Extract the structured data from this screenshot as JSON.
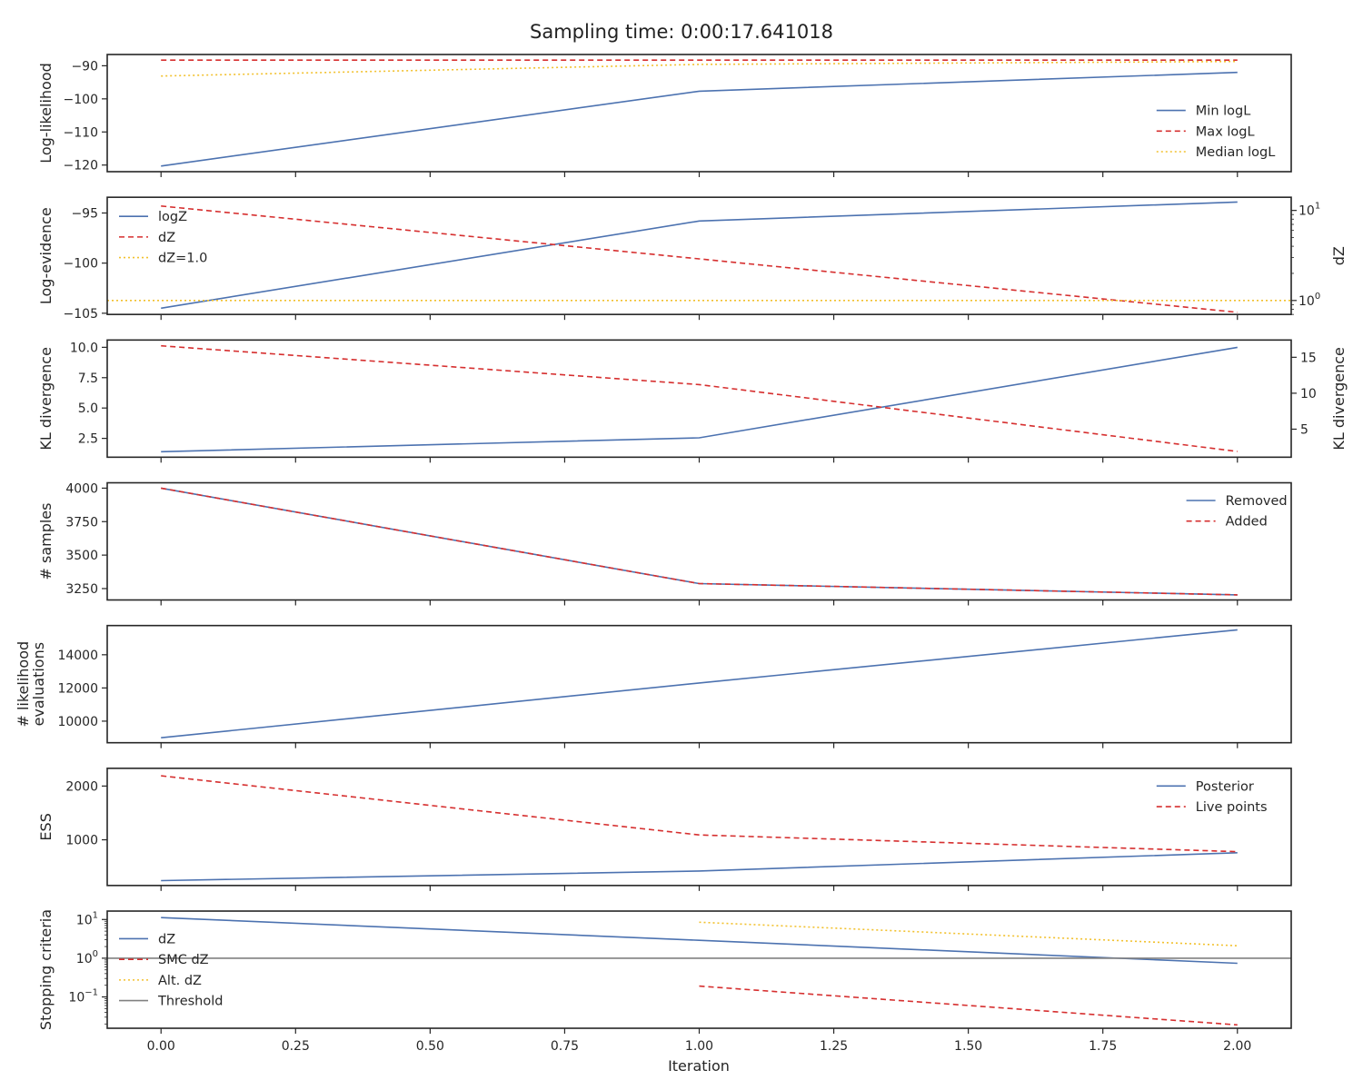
{
  "chart_data": {
    "type": "line",
    "title": "Sampling time: 0:00:17.641018",
    "xlabel": "Iteration",
    "x": [
      0,
      1,
      2
    ],
    "xlim": [
      -0.1,
      2.1
    ],
    "xticks": [
      "0.00",
      "0.25",
      "0.50",
      "0.75",
      "1.00",
      "1.25",
      "1.50",
      "1.75",
      "2.00"
    ],
    "colors": {
      "blue": "#4c72b0",
      "red": "#d62f2f",
      "yellow": "#f2c12e",
      "gray": "#808080"
    },
    "panels": [
      {
        "ylabel": "Log-likelihood",
        "ylim": [
          -122,
          -86.6
        ],
        "yticks": [
          {
            "v": -90,
            "t": "−90"
          },
          {
            "v": -100,
            "t": "−100"
          },
          {
            "v": -110,
            "t": "−110"
          },
          {
            "v": -120,
            "t": "−120"
          }
        ],
        "legend": "bottom-right",
        "series": [
          {
            "name": "Min logL",
            "values": [
              -120.3,
              -97.7,
              -92
            ],
            "color": "blue",
            "dash": "solid"
          },
          {
            "name": "Max logL",
            "values": [
              -88.3,
              -88.3,
              -88.3
            ],
            "color": "red",
            "dash": "dashed"
          },
          {
            "name": "Median logL",
            "values": [
              -93.1,
              -89.6,
              -88.7
            ],
            "color": "yellow",
            "dash": "dotted"
          }
        ]
      },
      {
        "ylabel": "Log-evidence",
        "ylim": [
          -105.12,
          -93.43
        ],
        "yticks": [
          {
            "v": -95,
            "t": "−95"
          },
          {
            "v": -100,
            "t": "−100"
          },
          {
            "v": -105,
            "t": "−105"
          }
        ],
        "legend": "top-left",
        "right_axis": {
          "label": "dZ",
          "scale": "log",
          "ylim": [
            0.7,
            14
          ],
          "ticks": [
            {
              "v": 10,
              "base": "10",
              "exp": "1"
            },
            {
              "v": 1,
              "base": "10",
              "exp": "0"
            }
          ]
        },
        "series": [
          {
            "name": "logZ",
            "values": [
              -104.5,
              -95.8,
              -93.9
            ],
            "color": "blue",
            "dash": "solid",
            "axis": "left"
          },
          {
            "name": "dZ",
            "values": [
              11.2,
              2.9,
              0.74
            ],
            "color": "red",
            "dash": "dashed",
            "axis": "right"
          },
          {
            "name": "dZ=1.0",
            "values": [
              1.0,
              1.0,
              1.0
            ],
            "color": "yellow",
            "dash": "dotted",
            "axis": "right",
            "span": "full"
          }
        ]
      },
      {
        "ylabel": "KL divergence",
        "ylim": [
          0.95,
          10.6
        ],
        "yticks": [
          {
            "v": 10,
            "t": "10.0"
          },
          {
            "v": 7.5,
            "t": "7.5"
          },
          {
            "v": 5,
            "t": "5.0"
          },
          {
            "v": 2.5,
            "t": "2.5"
          }
        ],
        "legend": "none",
        "right_axis": {
          "label": "KL divergence",
          "scale": "linear",
          "ylim": [
            1.1,
            17.4
          ],
          "ticks": [
            {
              "v": 15,
              "t": "15"
            },
            {
              "v": 10,
              "t": "10"
            },
            {
              "v": 5,
              "t": "5"
            }
          ]
        },
        "series": [
          {
            "name": "",
            "values": [
              1.4,
              2.55,
              10.0
            ],
            "color": "blue",
            "dash": "solid",
            "axis": "left"
          },
          {
            "name": "",
            "values": [
              16.6,
              11.2,
              1.9
            ],
            "color": "red",
            "dash": "dashed",
            "axis": "right"
          }
        ]
      },
      {
        "ylabel": "# samples",
        "ylim": [
          3165,
          4040
        ],
        "yticks": [
          {
            "v": 4000,
            "t": "4000"
          },
          {
            "v": 3750,
            "t": "3750"
          },
          {
            "v": 3500,
            "t": "3500"
          },
          {
            "v": 3250,
            "t": "3250"
          }
        ],
        "legend": "top-right",
        "series": [
          {
            "name": "Removed",
            "values": [
              4000,
              3287,
              3203
            ],
            "color": "blue",
            "dash": "solid"
          },
          {
            "name": "Added",
            "values": [
              4000,
              3287,
              3203
            ],
            "color": "red",
            "dash": "dashed"
          }
        ]
      },
      {
        "ylabel": [
          "# likelihood",
          "evaluations"
        ],
        "ylim": [
          8700,
          15760
        ],
        "yticks": [
          {
            "v": 14000,
            "t": "14000"
          },
          {
            "v": 12000,
            "t": "12000"
          },
          {
            "v": 10000,
            "t": "10000"
          }
        ],
        "legend": "none",
        "series": [
          {
            "name": "",
            "values": [
              9000,
              12300,
              15500
            ],
            "color": "blue",
            "dash": "solid"
          }
        ]
      },
      {
        "ylabel": "ESS",
        "ylim": [
          150,
          2330
        ],
        "yticks": [
          {
            "v": 2000,
            "t": "2000"
          },
          {
            "v": 1000,
            "t": "1000"
          }
        ],
        "legend": "top-right",
        "series": [
          {
            "name": "Posterior",
            "values": [
              240,
              420,
              760
            ],
            "color": "blue",
            "dash": "solid"
          },
          {
            "name": "Live points",
            "values": [
              2190,
              1090,
              780
            ],
            "color": "red",
            "dash": "dashed"
          }
        ]
      },
      {
        "ylabel": "Stopping criteria",
        "yscale": "log",
        "ylim": [
          0.0155,
          16.5
        ],
        "yticks": [
          {
            "v": 10,
            "base": "10",
            "exp": "1"
          },
          {
            "v": 1,
            "base": "10",
            "exp": "0"
          },
          {
            "v": 0.1,
            "base": "10",
            "exp": "−1"
          }
        ],
        "legend": "center-left",
        "series": [
          {
            "name": "dZ",
            "values": [
              11.2,
              2.9,
              0.74
            ],
            "color": "blue",
            "dash": "solid"
          },
          {
            "name": "SMC dZ",
            "values": [
              null,
              0.19,
              0.019
            ],
            "color": "red",
            "dash": "dashed"
          },
          {
            "name": "Alt. dZ",
            "values": [
              null,
              8.5,
              2.1
            ],
            "color": "yellow",
            "dash": "dotted"
          },
          {
            "name": "Threshold",
            "values": [
              1.0,
              1.0,
              1.0
            ],
            "color": "gray",
            "dash": "solid",
            "span": "full"
          }
        ]
      }
    ]
  }
}
